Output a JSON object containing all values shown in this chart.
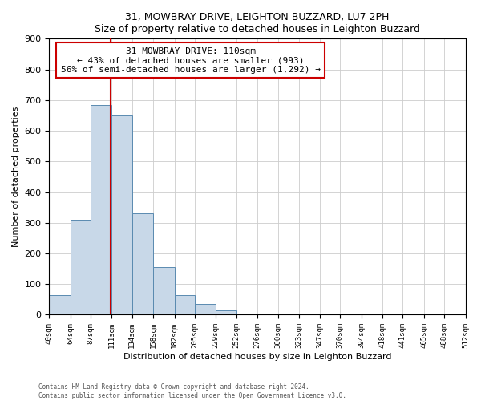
{
  "title": "31, MOWBRAY DRIVE, LEIGHTON BUZZARD, LU7 2PH",
  "subtitle": "Size of property relative to detached houses in Leighton Buzzard",
  "xlabel": "Distribution of detached houses by size in Leighton Buzzard",
  "ylabel": "Number of detached properties",
  "bin_labels": [
    "40sqm",
    "64sqm",
    "87sqm",
    "111sqm",
    "134sqm",
    "158sqm",
    "182sqm",
    "205sqm",
    "229sqm",
    "252sqm",
    "276sqm",
    "300sqm",
    "323sqm",
    "347sqm",
    "370sqm",
    "394sqm",
    "418sqm",
    "441sqm",
    "465sqm",
    "488sqm",
    "512sqm"
  ],
  "bar_heights": [
    65,
    310,
    685,
    650,
    330,
    155,
    65,
    35,
    15,
    5,
    5,
    0,
    0,
    0,
    0,
    0,
    0,
    5,
    0,
    0,
    5
  ],
  "bar_color": "#c8d8e8",
  "bar_edge_color": "#5a8ab0",
  "property_line_x": 110,
  "annotation_line1": "31 MOWBRAY DRIVE: 110sqm",
  "annotation_line2": "← 43% of detached houses are smaller (993)",
  "annotation_line3": "56% of semi-detached houses are larger (1,292) →",
  "annotation_box_color": "#ffffff",
  "annotation_box_edge": "#cc0000",
  "property_line_color": "#cc0000",
  "ylim": [
    0,
    900
  ],
  "yticks": [
    0,
    100,
    200,
    300,
    400,
    500,
    600,
    700,
    800,
    900
  ],
  "footnote1": "Contains HM Land Registry data © Crown copyright and database right 2024.",
  "footnote2": "Contains public sector information licensed under the Open Government Licence v3.0.",
  "bin_edges": [
    40,
    64,
    87,
    111,
    134,
    158,
    182,
    205,
    229,
    252,
    276,
    300,
    323,
    347,
    370,
    394,
    418,
    441,
    465,
    488,
    512
  ],
  "xlim": [
    40,
    512
  ]
}
